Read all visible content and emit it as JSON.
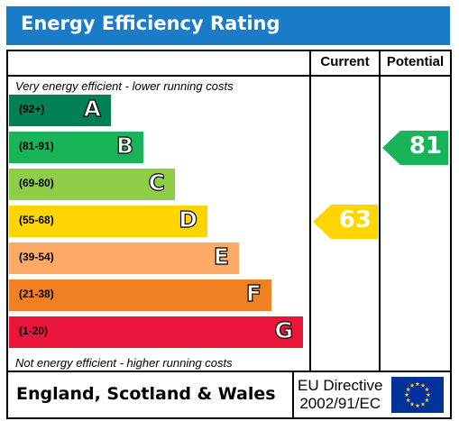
{
  "title": "Energy Efficiency Rating",
  "headers": {
    "current": "Current",
    "potential": "Potential"
  },
  "captions": {
    "top": "Very energy efficient - lower running costs",
    "bottom": "Not energy efficient - higher running costs"
  },
  "footer": {
    "country": "England, Scotland & Wales",
    "directive_line1": "EU Directive",
    "directive_line2": "2002/91/EC",
    "flag_icon": "eu-flag-icon"
  },
  "colors": {
    "title_bar": "#1a7bc8",
    "flag_blue": "#003399",
    "flag_star": "#ffcc00"
  },
  "chart_data": {
    "type": "bar",
    "title": "Energy Efficiency Rating",
    "categories": [
      "A",
      "B",
      "C",
      "D",
      "E",
      "F",
      "G"
    ],
    "ranges": [
      "(92+)",
      "(81-91)",
      "(69-80)",
      "(55-68)",
      "(39-54)",
      "(21-38)",
      "(1-20)"
    ],
    "band_colors": [
      "#008054",
      "#19b459",
      "#8dce46",
      "#ffd500",
      "#fcaa65",
      "#ef8023",
      "#e9153b"
    ],
    "current": {
      "value": 63,
      "label": "63",
      "band": "D"
    },
    "potential": {
      "value": 81,
      "label": "81",
      "band": "B"
    }
  }
}
